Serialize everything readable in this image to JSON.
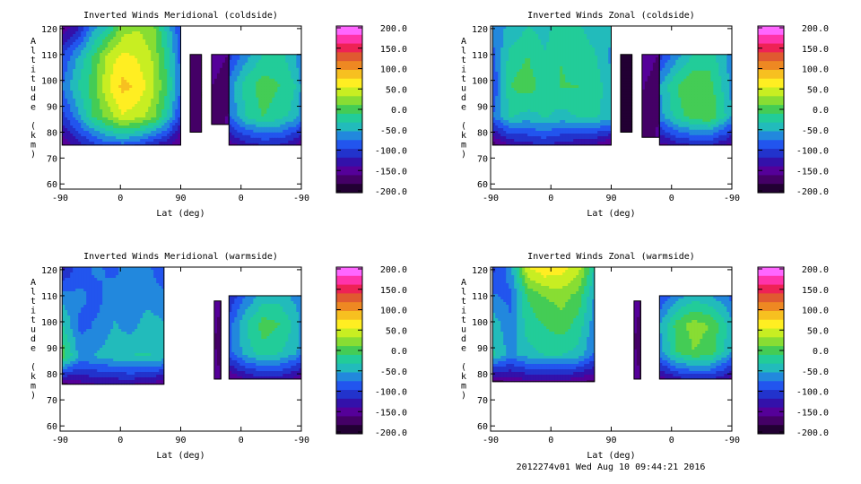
{
  "footer": {
    "stamp": "2012274v01 Wed Aug 10 09:44:21 2016"
  },
  "colorbar": {
    "ticks": [
      "200.0",
      "150.0",
      "100.0",
      "50.0",
      "0.0",
      "-50.0",
      "-100.0",
      "-150.0",
      "-200.0"
    ],
    "colors": [
      "#ff66ff",
      "#ff33aa",
      "#ee2255",
      "#e05a30",
      "#ee8822",
      "#f7c020",
      "#ffee22",
      "#c8ee22",
      "#88dd33",
      "#44cc55",
      "#22cc99",
      "#22bbbb",
      "#2288dd",
      "#2255ee",
      "#2233cc",
      "#3311aa",
      "#550099",
      "#440066",
      "#220033"
    ]
  },
  "chart_data": [
    {
      "type": "heatmap",
      "title": "Inverted Winds Meridional (coldside)",
      "xlabel": "Lat (deg)",
      "ylabel": "Altitude (km)",
      "xticks": [
        "-90",
        "0",
        "90",
        "0",
        "-90"
      ],
      "yticks": [
        "60",
        "70",
        "80",
        "90",
        "100",
        "110",
        "120"
      ],
      "ylim": [
        58,
        121
      ],
      "vlim": [
        -200,
        200
      ],
      "regions": [
        {
          "x": [
            -87,
            90
          ],
          "y": [
            75,
            121
          ],
          "values": [
            [
              -150,
              -120,
              -60,
              -30,
              20,
              30,
              20,
              -40,
              -100
            ],
            [
              -90,
              -50,
              -10,
              40,
              60,
              50,
              30,
              -20,
              -90
            ],
            [
              -70,
              -30,
              0,
              50,
              80,
              70,
              40,
              -10,
              -80
            ],
            [
              -100,
              -60,
              -10,
              20,
              50,
              40,
              20,
              -30,
              -110
            ],
            [
              -160,
              -130,
              -110,
              -90,
              -90,
              -100,
              -120,
              -140,
              -170
            ]
          ]
        },
        {
          "x": [
            104,
            121
          ],
          "y": [
            80,
            110
          ],
          "values": [
            [
              -160,
              -170
            ],
            [
              -170,
              -180
            ],
            [
              -160,
              -170
            ]
          ]
        },
        {
          "x": [
            136,
            162
          ],
          "y": [
            83,
            110
          ],
          "values": [
            [
              -150,
              -160
            ],
            [
              -160,
              -170
            ],
            [
              -170,
              -150
            ]
          ]
        },
        {
          "x": [
            162,
            282
          ],
          "y": [
            75,
            110
          ],
          "values": [
            [
              -100,
              -60,
              -30,
              -20,
              -50,
              -110
            ],
            [
              -60,
              -20,
              0,
              -10,
              -30,
              -90
            ],
            [
              -70,
              -30,
              -10,
              -20,
              -40,
              -100
            ],
            [
              -150,
              -130,
              -120,
              -120,
              -140,
              -170
            ]
          ]
        }
      ]
    },
    {
      "type": "heatmap",
      "title": "Inverted Winds Zonal (coldside)",
      "xlabel": "Lat (deg)",
      "ylabel": "Altitude (km)",
      "xticks": [
        "-90",
        "0",
        "90",
        "0",
        "-90"
      ],
      "yticks": [
        "60",
        "70",
        "80",
        "90",
        "100",
        "110",
        "120"
      ],
      "ylim": [
        58,
        121
      ],
      "vlim": [
        -200,
        200
      ],
      "regions": [
        {
          "x": [
            -87,
            90
          ],
          "y": [
            75,
            121
          ],
          "values": [
            [
              -60,
              -50,
              -30,
              -40,
              -20,
              -30,
              -40,
              -50
            ],
            [
              -80,
              -20,
              -10,
              -30,
              -10,
              -20,
              -30,
              -60
            ],
            [
              -90,
              -10,
              0,
              -20,
              -10,
              -10,
              -20,
              -50
            ],
            [
              -70,
              -30,
              -40,
              -30,
              -40,
              -30,
              -30,
              -40
            ],
            [
              -170,
              -140,
              -130,
              -120,
              -130,
              -140,
              -150,
              -170
            ]
          ]
        },
        {
          "x": [
            104,
            121
          ],
          "y": [
            80,
            110
          ],
          "values": [
            [
              -180,
              -190
            ],
            [
              -190,
              -190
            ],
            [
              -180,
              -190
            ]
          ]
        },
        {
          "x": [
            136,
            162
          ],
          "y": [
            78,
            110
          ],
          "values": [
            [
              -150,
              -160
            ],
            [
              -160,
              -170
            ],
            [
              -170,
              -150
            ]
          ]
        },
        {
          "x": [
            162,
            282
          ],
          "y": [
            75,
            110
          ],
          "values": [
            [
              -100,
              -60,
              -30,
              -20,
              -50,
              -110
            ],
            [
              -50,
              -10,
              10,
              0,
              -40,
              -80
            ],
            [
              -60,
              -20,
              0,
              10,
              -30,
              -90
            ],
            [
              -150,
              -130,
              -120,
              -120,
              -140,
              -170
            ]
          ]
        }
      ]
    },
    {
      "type": "heatmap",
      "title": "Inverted Winds Meridional (warmside)",
      "xlabel": "Lat (deg)",
      "ylabel": "Altitude (km)",
      "xticks": [
        "-90",
        "0",
        "90",
        "0",
        "-90"
      ],
      "yticks": [
        "60",
        "70",
        "80",
        "90",
        "100",
        "110",
        "120"
      ],
      "ylim": [
        58,
        121
      ],
      "vlim": [
        -200,
        200
      ],
      "regions": [
        {
          "x": [
            -87,
            65
          ],
          "y": [
            76,
            121
          ],
          "values": [
            [
              -120,
              -80,
              -70,
              -80,
              -60,
              -70,
              -90
            ],
            [
              -60,
              -70,
              -80,
              -60,
              -70,
              -60,
              -70
            ],
            [
              -30,
              -80,
              -70,
              -50,
              -60,
              -40,
              -50
            ],
            [
              0,
              -60,
              -50,
              -40,
              -30,
              -30,
              -40
            ],
            [
              -170,
              -150,
              -140,
              -140,
              -140,
              -150,
              -160
            ]
          ]
        },
        {
          "x": [
            140,
            150
          ],
          "y": [
            78,
            108
          ],
          "values": [
            [
              -150,
              -160
            ],
            [
              -160,
              -170
            ],
            [
              -150,
              -160
            ]
          ]
        },
        {
          "x": [
            162,
            285
          ],
          "y": [
            78,
            110
          ],
          "values": [
            [
              -110,
              -70,
              -40,
              -40,
              -60,
              -110
            ],
            [
              -80,
              -30,
              0,
              -10,
              -40,
              -90
            ],
            [
              -80,
              -40,
              -20,
              -30,
              -50,
              -100
            ],
            [
              -160,
              -140,
              -130,
              -130,
              -150,
              -170
            ]
          ]
        }
      ]
    },
    {
      "type": "heatmap",
      "title": "Inverted Winds Zonal (warmside)",
      "xlabel": "Lat (deg)",
      "ylabel": "Altitude (km)",
      "xticks": [
        "-90",
        "0",
        "90",
        "0",
        "-90"
      ],
      "yticks": [
        "60",
        "70",
        "80",
        "90",
        "100",
        "110",
        "120"
      ],
      "ylim": [
        58,
        121
      ],
      "vlim": [
        -200,
        200
      ],
      "regions": [
        {
          "x": [
            -87,
            65
          ],
          "y": [
            77,
            121
          ],
          "values": [
            [
              -100,
              -60,
              50,
              70,
              60,
              40,
              -40
            ],
            [
              -70,
              -80,
              -10,
              10,
              20,
              0,
              -60
            ],
            [
              -40,
              -70,
              -20,
              -10,
              0,
              -20,
              -70
            ],
            [
              -30,
              -60,
              -40,
              -30,
              -30,
              -40,
              -80
            ],
            [
              -170,
              -160,
              -150,
              -150,
              -150,
              -160,
              -170
            ]
          ]
        },
        {
          "x": [
            124,
            134
          ],
          "y": [
            78,
            108
          ],
          "values": [
            [
              -150,
              -160
            ],
            [
              -160,
              -170
            ],
            [
              -150,
              -160
            ]
          ]
        },
        {
          "x": [
            162,
            285
          ],
          "y": [
            78,
            110
          ],
          "values": [
            [
              -90,
              -60,
              -40,
              -50,
              -70,
              -110
            ],
            [
              -50,
              0,
              20,
              10,
              -30,
              -80
            ],
            [
              -60,
              -10,
              10,
              0,
              -40,
              -90
            ],
            [
              -150,
              -130,
              -120,
              -120,
              -140,
              -170
            ]
          ]
        }
      ]
    }
  ]
}
